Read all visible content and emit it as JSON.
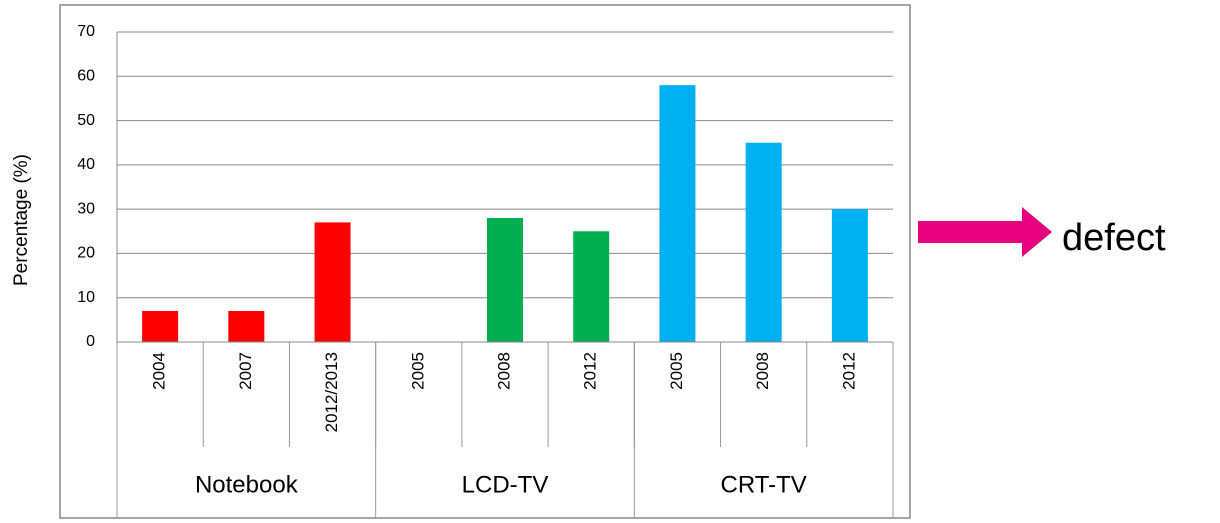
{
  "chart_data": {
    "type": "bar",
    "ylabel": "Percentage (%)",
    "categories": [
      "2004",
      "2007",
      "2012/2013",
      "2005",
      "2008",
      "2012",
      "2005",
      "2008",
      "2012"
    ],
    "series": [
      {
        "name": "Notebook",
        "color": "#ff0000",
        "values": [
          7,
          7,
          27,
          null,
          null,
          null,
          null,
          null,
          null
        ]
      },
      {
        "name": "LCD-TV",
        "color": "#00b050",
        "values": [
          null,
          null,
          null,
          null,
          28,
          25,
          null,
          null,
          null
        ]
      },
      {
        "name": "CRT-TV",
        "color": "#00b0f0",
        "values": [
          null,
          null,
          null,
          null,
          null,
          null,
          58,
          45,
          30
        ]
      }
    ],
    "ylim": [
      0,
      70
    ],
    "yticks": [
      0,
      10,
      20,
      30,
      40,
      50,
      60,
      70
    ],
    "grid": true,
    "annotation": "defect"
  }
}
